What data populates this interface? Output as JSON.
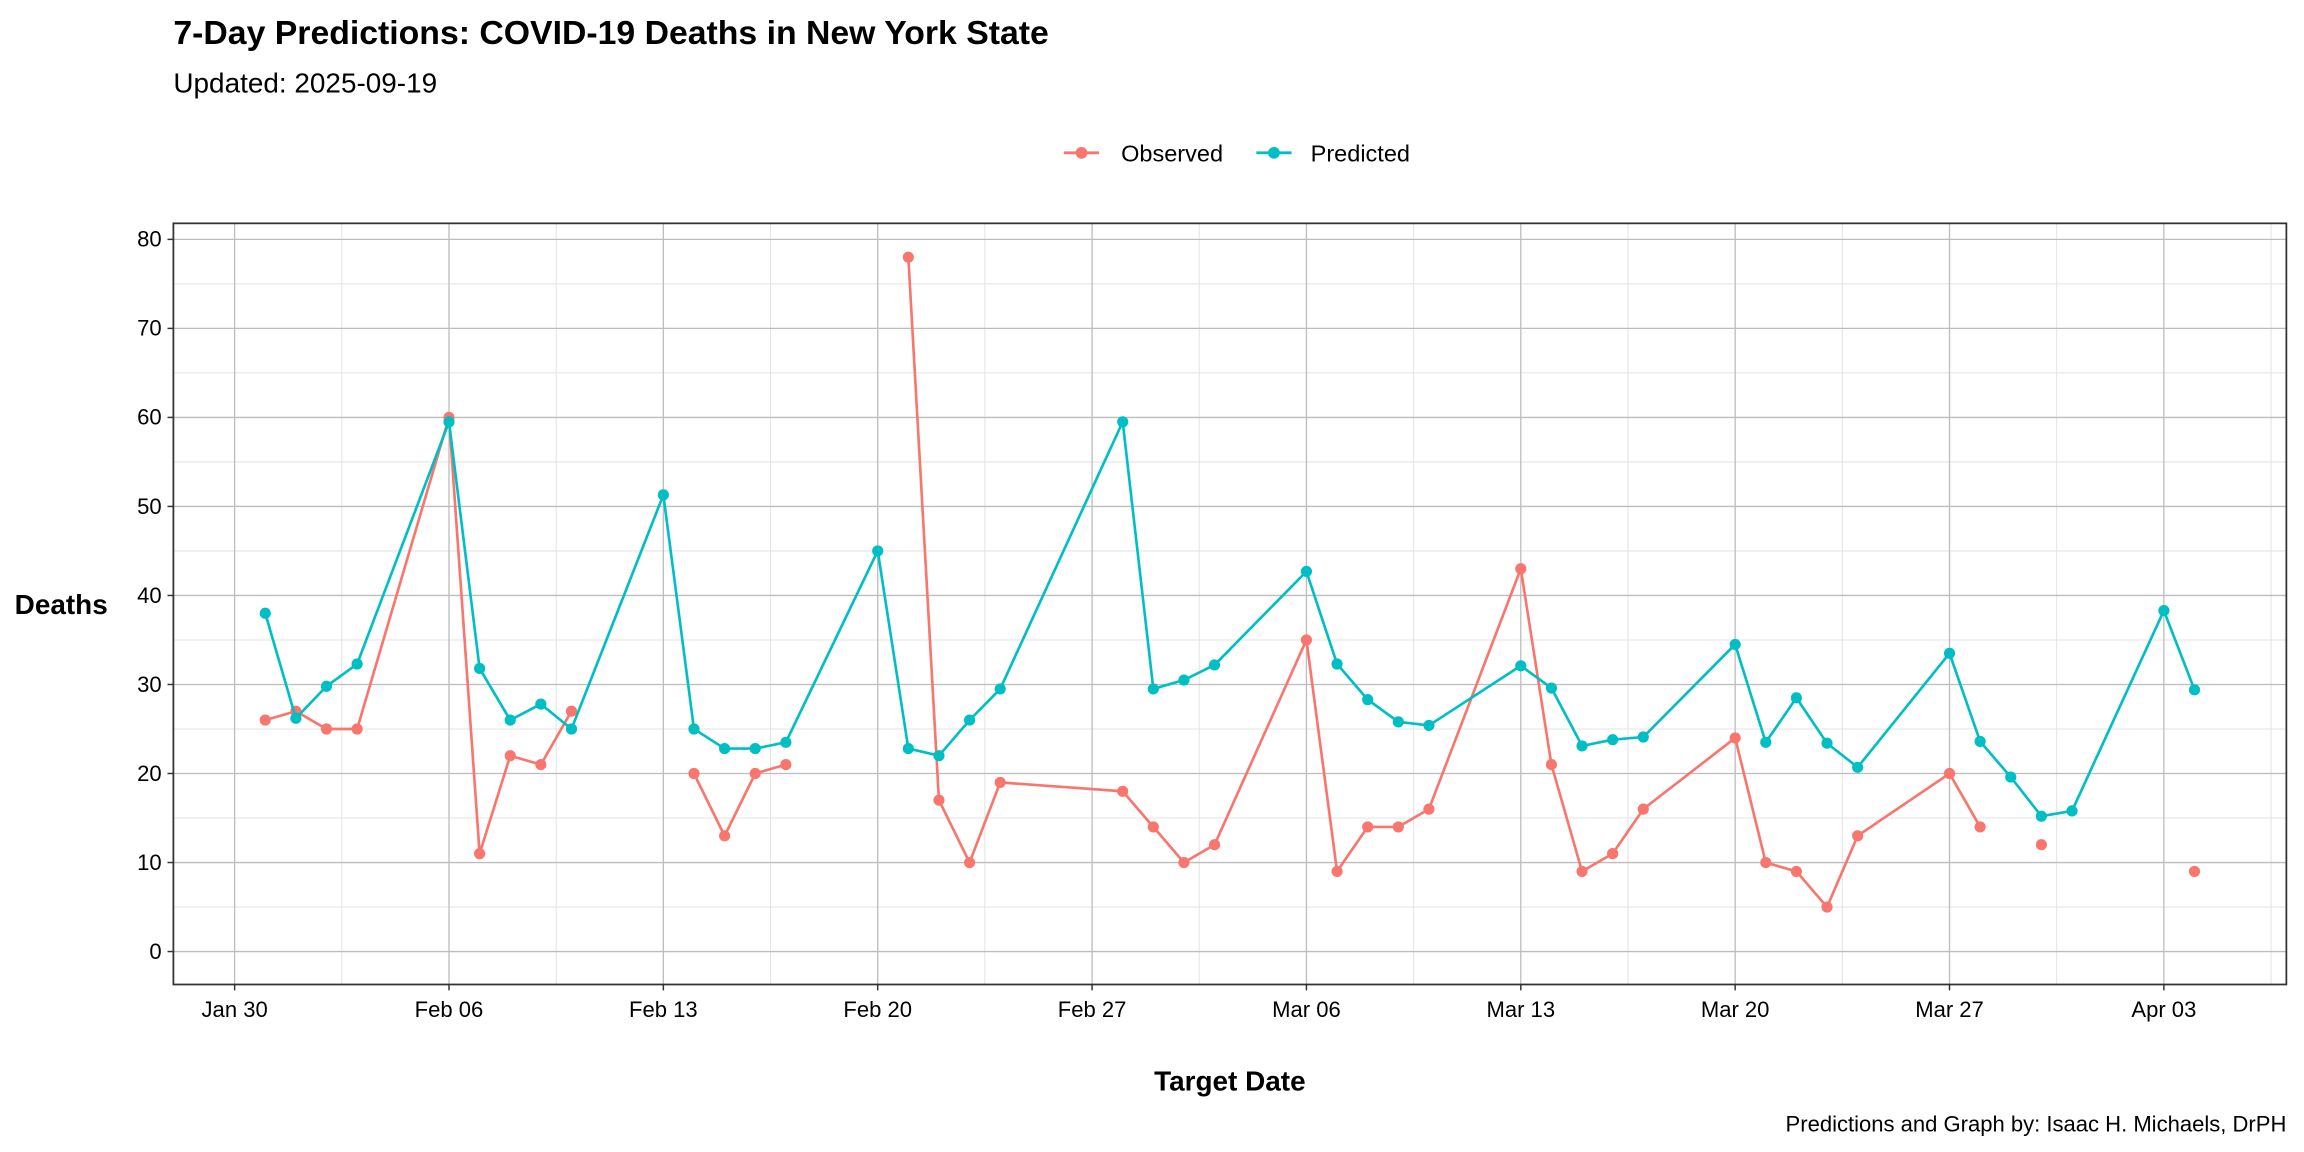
{
  "chart_data": {
    "type": "line",
    "title": "7-Day Predictions: COVID-19 Deaths in New York State",
    "subtitle": "Updated: 2025-09-19",
    "xlabel": "Target Date",
    "ylabel": "Deaths",
    "caption": "Predictions and Graph by: Isaac H. Michaels, DrPH",
    "legend_position": "top",
    "grid": true,
    "ylim": [
      -3.7,
      81.8
    ],
    "xlim": [
      "2025-01-28",
      "2025-04-07"
    ],
    "x_ticks": [
      {
        "date": "2025-01-30",
        "label": "Jan 30"
      },
      {
        "date": "2025-02-06",
        "label": "Feb 06"
      },
      {
        "date": "2025-02-13",
        "label": "Feb 13"
      },
      {
        "date": "2025-02-20",
        "label": "Feb 20"
      },
      {
        "date": "2025-02-27",
        "label": "Feb 27"
      },
      {
        "date": "2025-03-06",
        "label": "Mar 06"
      },
      {
        "date": "2025-03-13",
        "label": "Mar 13"
      },
      {
        "date": "2025-03-20",
        "label": "Mar 20"
      },
      {
        "date": "2025-03-27",
        "label": "Mar 27"
      },
      {
        "date": "2025-04-03",
        "label": "Apr 03"
      }
    ],
    "y_ticks": [
      0,
      10,
      20,
      30,
      40,
      50,
      60,
      70,
      80
    ],
    "series": [
      {
        "name": "Observed",
        "color": "#F8766D",
        "points": [
          [
            "2025-01-31",
            26
          ],
          [
            "2025-02-01",
            27
          ],
          [
            "2025-02-02",
            25
          ],
          [
            "2025-02-03",
            25
          ],
          [
            "2025-02-06",
            60
          ],
          [
            "2025-02-07",
            11
          ],
          [
            "2025-02-08",
            22
          ],
          [
            "2025-02-09",
            21
          ],
          [
            "2025-02-10",
            27
          ],
          [
            "2025-02-13",
            null
          ],
          [
            "2025-02-14",
            20
          ],
          [
            "2025-02-15",
            13
          ],
          [
            "2025-02-16",
            20
          ],
          [
            "2025-02-17",
            21
          ],
          [
            "2025-02-20",
            null
          ],
          [
            "2025-02-21",
            78
          ],
          [
            "2025-02-22",
            17
          ],
          [
            "2025-02-23",
            10
          ],
          [
            "2025-02-24",
            19
          ],
          [
            "2025-02-28",
            18
          ],
          [
            "2025-03-01",
            14
          ],
          [
            "2025-03-02",
            10
          ],
          [
            "2025-03-03",
            12
          ],
          [
            "2025-03-06",
            35
          ],
          [
            "2025-03-07",
            9
          ],
          [
            "2025-03-08",
            14
          ],
          [
            "2025-03-09",
            14
          ],
          [
            "2025-03-10",
            16
          ],
          [
            "2025-03-13",
            43
          ],
          [
            "2025-03-14",
            21
          ],
          [
            "2025-03-15",
            9
          ],
          [
            "2025-03-16",
            11
          ],
          [
            "2025-03-17",
            16
          ],
          [
            "2025-03-20",
            24
          ],
          [
            "2025-03-21",
            10
          ],
          [
            "2025-03-22",
            9
          ],
          [
            "2025-03-23",
            5
          ],
          [
            "2025-03-24",
            13
          ],
          [
            "2025-03-27",
            20
          ],
          [
            "2025-03-28",
            14
          ],
          [
            "2025-03-29",
            null
          ],
          [
            "2025-03-30",
            12
          ],
          [
            "2025-03-31",
            null
          ],
          [
            "2025-04-03",
            null
          ],
          [
            "2025-04-04",
            9
          ]
        ]
      },
      {
        "name": "Predicted",
        "color": "#00BFC4",
        "points": [
          [
            "2025-01-31",
            38
          ],
          [
            "2025-02-01",
            26.2
          ],
          [
            "2025-02-02",
            29.8
          ],
          [
            "2025-02-03",
            32.3
          ],
          [
            "2025-02-06",
            59.5
          ],
          [
            "2025-02-07",
            31.8
          ],
          [
            "2025-02-08",
            26
          ],
          [
            "2025-02-09",
            27.8
          ],
          [
            "2025-02-10",
            25
          ],
          [
            "2025-02-13",
            51.3
          ],
          [
            "2025-02-14",
            25
          ],
          [
            "2025-02-15",
            22.8
          ],
          [
            "2025-02-16",
            22.8
          ],
          [
            "2025-02-17",
            23.5
          ],
          [
            "2025-02-20",
            45
          ],
          [
            "2025-02-21",
            22.8
          ],
          [
            "2025-02-22",
            22
          ],
          [
            "2025-02-23",
            26
          ],
          [
            "2025-02-24",
            29.5
          ],
          [
            "2025-02-28",
            59.5
          ],
          [
            "2025-03-01",
            29.5
          ],
          [
            "2025-03-02",
            30.5
          ],
          [
            "2025-03-03",
            32.2
          ],
          [
            "2025-03-06",
            42.7
          ],
          [
            "2025-03-07",
            32.3
          ],
          [
            "2025-03-08",
            28.3
          ],
          [
            "2025-03-09",
            25.8
          ],
          [
            "2025-03-10",
            25.4
          ],
          [
            "2025-03-13",
            32.1
          ],
          [
            "2025-03-14",
            29.6
          ],
          [
            "2025-03-15",
            23.1
          ],
          [
            "2025-03-16",
            23.8
          ],
          [
            "2025-03-17",
            24.1
          ],
          [
            "2025-03-20",
            34.5
          ],
          [
            "2025-03-21",
            23.5
          ],
          [
            "2025-03-22",
            28.5
          ],
          [
            "2025-03-23",
            23.4
          ],
          [
            "2025-03-24",
            20.7
          ],
          [
            "2025-03-27",
            33.5
          ],
          [
            "2025-03-28",
            23.6
          ],
          [
            "2025-03-29",
            19.6
          ],
          [
            "2025-03-30",
            15.2
          ],
          [
            "2025-03-31",
            15.8
          ],
          [
            "2025-04-03",
            38.3
          ],
          [
            "2025-04-04",
            29.4
          ]
        ]
      }
    ]
  }
}
